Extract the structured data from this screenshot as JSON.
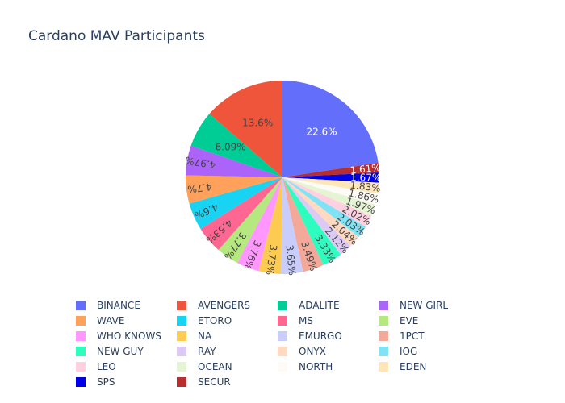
{
  "chart_data": {
    "type": "pie",
    "title": "Cardano MAV Participants",
    "legend_position": "bottom",
    "direction": "clockwise",
    "start_angle_deg": 0,
    "slices": [
      {
        "label": "BINANCE",
        "percent": 22.6,
        "text": "22.6%",
        "color": "#636efa"
      },
      {
        "label": "SECUR",
        "percent": 1.61,
        "text": "1.61%",
        "color": "#b82e2e"
      },
      {
        "label": "SPS",
        "percent": 1.67,
        "text": "1.67%",
        "color": "#0000e6"
      },
      {
        "label": "EDEN",
        "percent": 1.83,
        "text": "1.83%",
        "color": "#fee6b8"
      },
      {
        "label": "NORTH",
        "percent": 1.86,
        "text": "1.86%",
        "color": "#fefaf6"
      },
      {
        "label": "OCEAN",
        "percent": 1.97,
        "text": "1.97%",
        "color": "#e5f5d4"
      },
      {
        "label": "LEO",
        "percent": 2.02,
        "text": "2.02%",
        "color": "#ffd0e0"
      },
      {
        "label": "IOG",
        "percent": 2.03,
        "text": "2.03%",
        "color": "#7fe3f5"
      },
      {
        "label": "ONYX",
        "percent": 2.04,
        "text": "2.04%",
        "color": "#ffd9c0"
      },
      {
        "label": "RAY",
        "percent": 2.12,
        "text": "2.12%",
        "color": "#dccaf5"
      },
      {
        "label": "NEW GUY",
        "percent": 3.33,
        "text": "3.33%",
        "color": "#2ffdc0"
      },
      {
        "label": "1PCT",
        "percent": 3.49,
        "text": "3.49%",
        "color": "#f4a899"
      },
      {
        "label": "EMURGO",
        "percent": 3.65,
        "text": "3.65%",
        "color": "#c8cdfc"
      },
      {
        "label": "NA",
        "percent": 3.73,
        "text": "3.73%",
        "color": "#fecb52"
      },
      {
        "label": "WHO KNOWS",
        "percent": 3.76,
        "text": "3.76%",
        "color": "#ff97ff"
      },
      {
        "label": "EVE",
        "percent": 3.77,
        "text": "3.77%",
        "color": "#b6e880"
      },
      {
        "label": "MS",
        "percent": 4.53,
        "text": "4.53%",
        "color": "#ff6692"
      },
      {
        "label": "ETORO",
        "percent": 4.6,
        "text": "4.6%",
        "color": "#19d3f3"
      },
      {
        "label": "WAVE",
        "percent": 4.7,
        "text": "4.7%",
        "color": "#ffa15a"
      },
      {
        "label": "NEW GIRL",
        "percent": 4.97,
        "text": "4.97%",
        "color": "#ab63fa"
      },
      {
        "label": "ADALITE",
        "percent": 6.09,
        "text": "6.09%",
        "color": "#00cc96"
      },
      {
        "label": "AVENGERS",
        "percent": 13.6,
        "text": "13.6%",
        "color": "#ef553b"
      }
    ],
    "legend_order": [
      "BINANCE",
      "AVENGERS",
      "ADALITE",
      "NEW GIRL",
      "WAVE",
      "ETORO",
      "MS",
      "EVE",
      "WHO KNOWS",
      "NA",
      "EMURGO",
      "1PCT",
      "NEW GUY",
      "RAY",
      "ONYX",
      "IOG",
      "LEO",
      "OCEAN",
      "NORTH",
      "EDEN",
      "SPS",
      "SECUR"
    ]
  }
}
